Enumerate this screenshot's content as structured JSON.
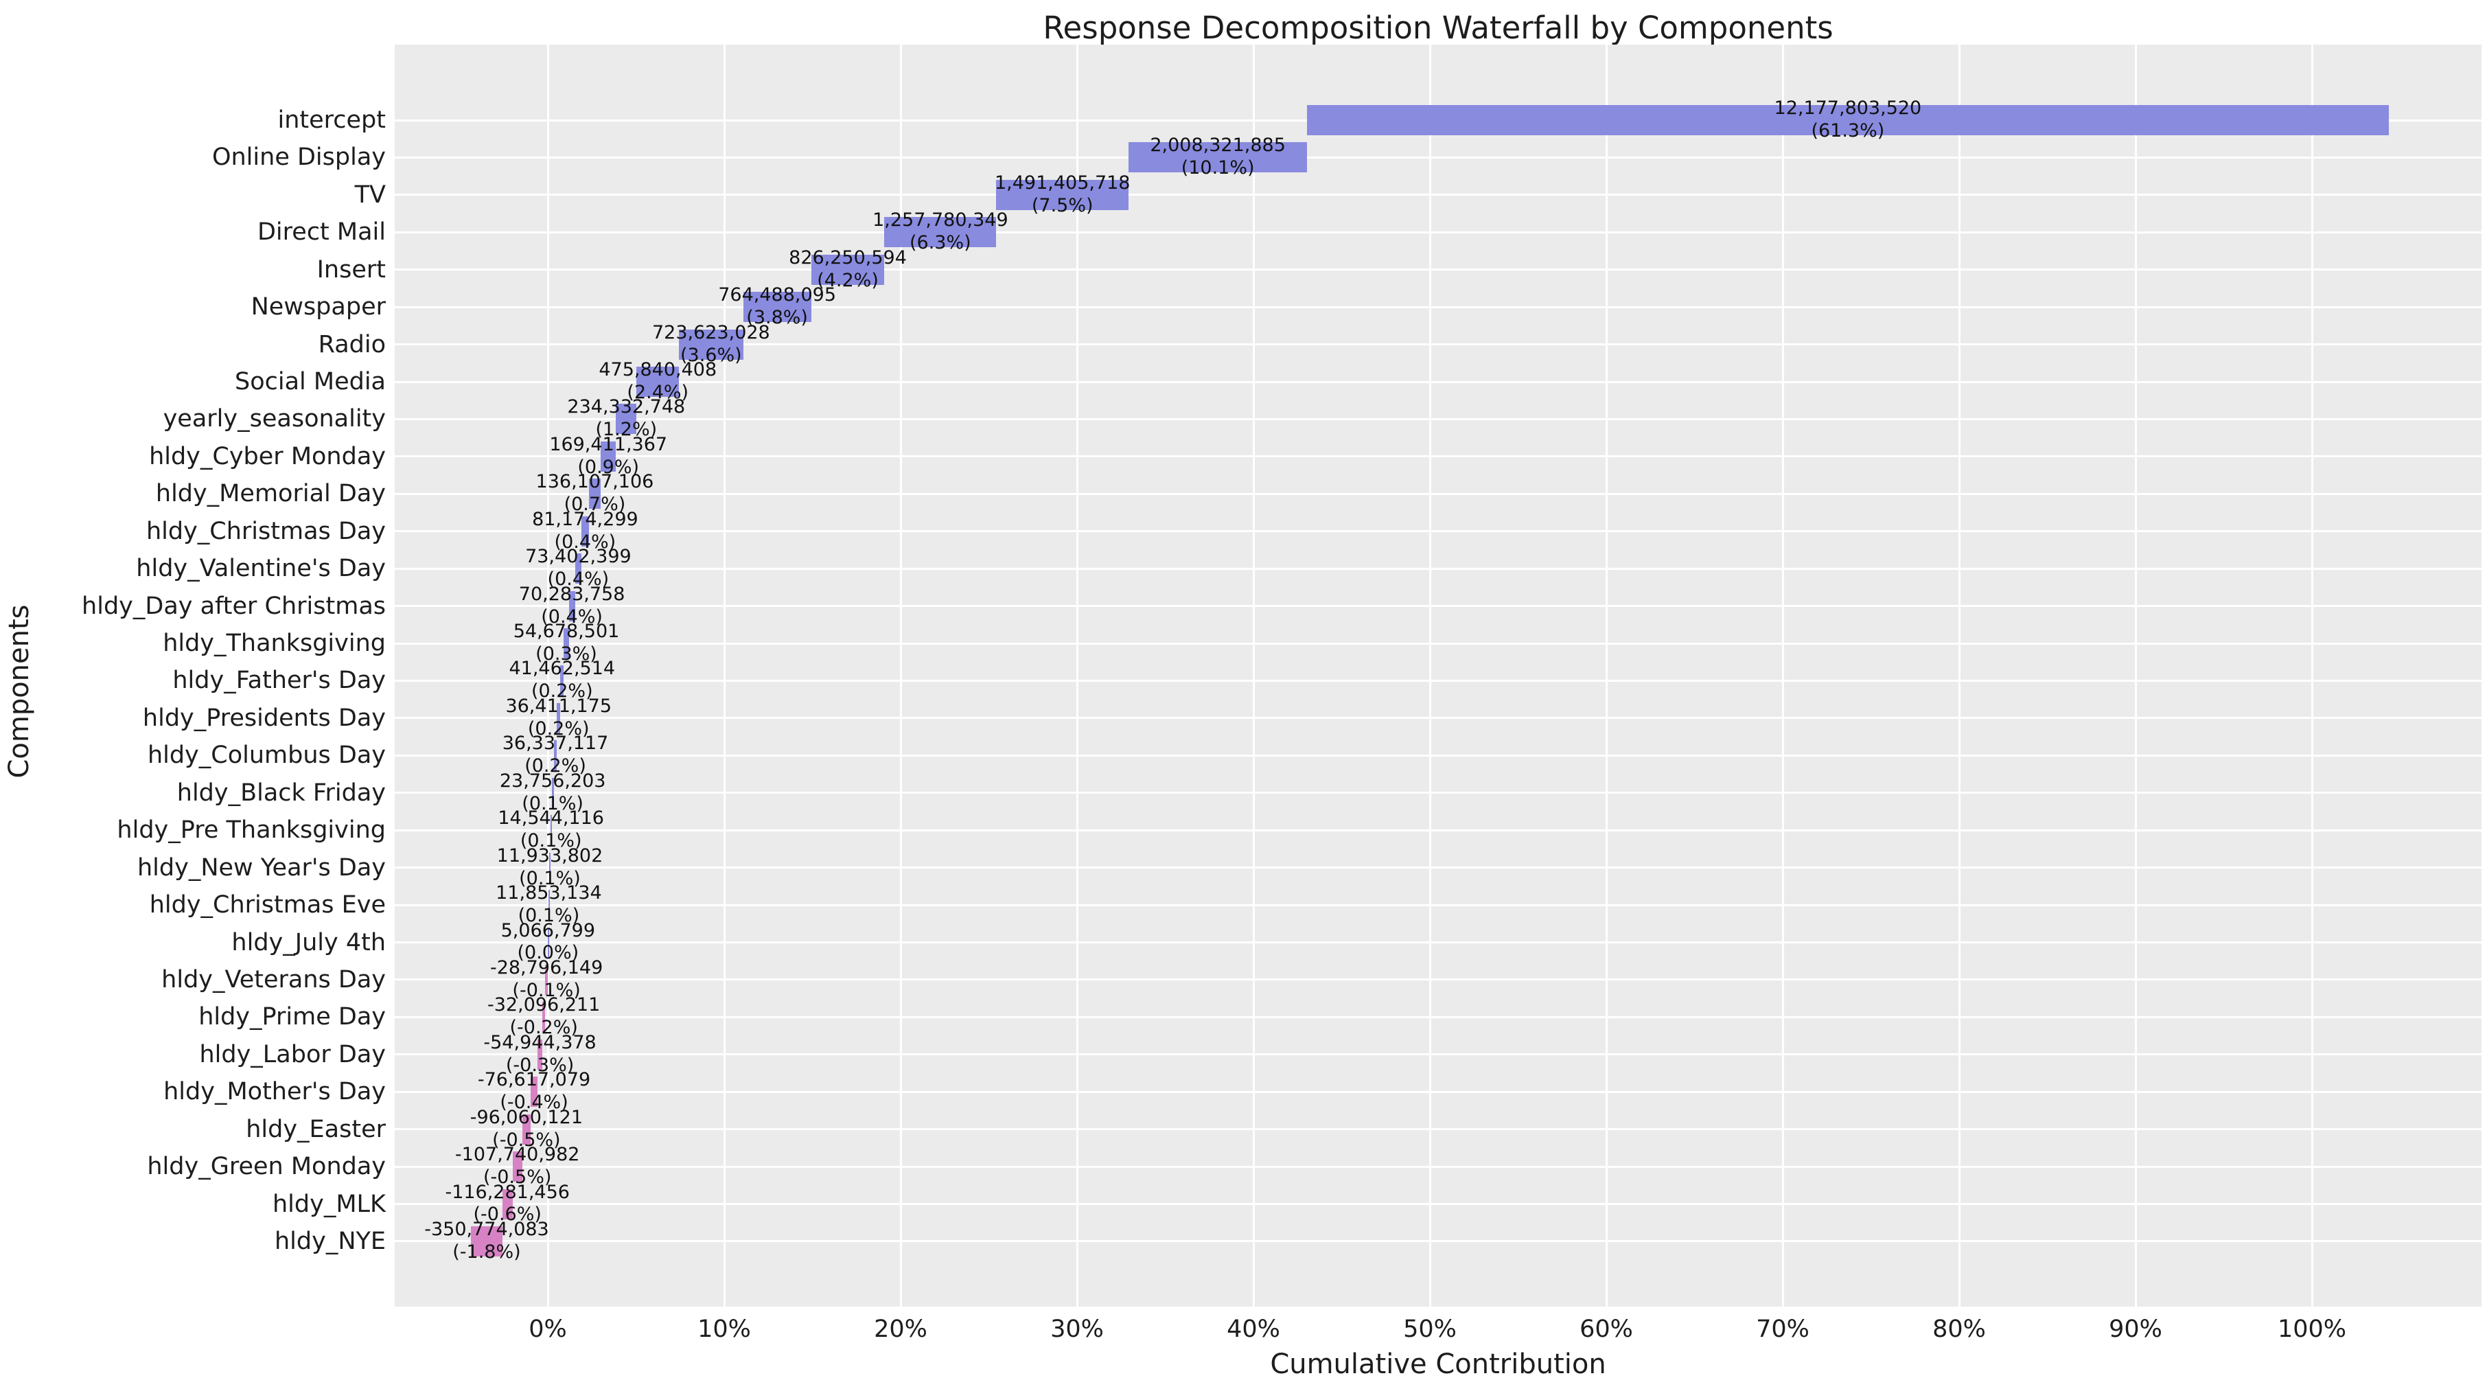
{
  "title": "Response Decomposition Waterfall by Components",
  "x_axis_label": "Cumulative Contribution",
  "y_axis_label": "Components",
  "colors": {
    "positive_bar": "#898bdf",
    "negative_bar": "#d782c4",
    "plot_background": "#ebebeb",
    "gridline": "#ffffff",
    "text": "#1d1d1d"
  },
  "chart_data": {
    "type": "bar",
    "subtype": "horizontal-waterfall",
    "title": "Response Decomposition Waterfall by Components",
    "xlabel": "Cumulative Contribution",
    "ylabel": "Components",
    "grid": true,
    "x_tick_labels": [
      "0%",
      "10%",
      "20%",
      "30%",
      "40%",
      "50%",
      "60%",
      "70%",
      "80%",
      "90%",
      "100%"
    ],
    "x_tick_values_pct": [
      0,
      10,
      20,
      30,
      40,
      50,
      60,
      70,
      80,
      90,
      100
    ],
    "x_range_pct": [
      -8.7,
      109.6
    ],
    "rows": [
      {
        "label": "intercept",
        "value": 12177803520,
        "value_label": "12,177,803,520",
        "pct_label": "(61.3%)"
      },
      {
        "label": "Online Display",
        "value": 2008321885,
        "value_label": "2,008,321,885",
        "pct_label": "(10.1%)"
      },
      {
        "label": "TV",
        "value": 1491405718,
        "value_label": "1,491,405,718",
        "pct_label": "(7.5%)"
      },
      {
        "label": "Direct Mail",
        "value": 1257780349,
        "value_label": "1,257,780,349",
        "pct_label": "(6.3%)"
      },
      {
        "label": "Insert",
        "value": 826250594,
        "value_label": "826,250,594",
        "pct_label": "(4.2%)"
      },
      {
        "label": "Newspaper",
        "value": 764488095,
        "value_label": "764,488,095",
        "pct_label": "(3.8%)"
      },
      {
        "label": "Radio",
        "value": 723623028,
        "value_label": "723,623,028",
        "pct_label": "(3.6%)"
      },
      {
        "label": "Social Media",
        "value": 475840408,
        "value_label": "475,840,408",
        "pct_label": "(2.4%)"
      },
      {
        "label": "yearly_seasonality",
        "value": 234332748,
        "value_label": "234,332,748",
        "pct_label": "(1.2%)"
      },
      {
        "label": "hldy_Cyber Monday",
        "value": 169411367,
        "value_label": "169,411,367",
        "pct_label": "(0.9%)"
      },
      {
        "label": "hldy_Memorial Day",
        "value": 136107106,
        "value_label": "136,107,106",
        "pct_label": "(0.7%)"
      },
      {
        "label": "hldy_Christmas Day",
        "value": 81174299,
        "value_label": "81,174,299",
        "pct_label": "(0.4%)"
      },
      {
        "label": "hldy_Valentine's Day",
        "value": 73402399,
        "value_label": "73,402,399",
        "pct_label": "(0.4%)"
      },
      {
        "label": "hldy_Day after Christmas",
        "value": 70283758,
        "value_label": "70,283,758",
        "pct_label": "(0.4%)"
      },
      {
        "label": "hldy_Thanksgiving",
        "value": 54678501,
        "value_label": "54,678,501",
        "pct_label": "(0.3%)"
      },
      {
        "label": "hldy_Father's Day",
        "value": 41462514,
        "value_label": "41,462,514",
        "pct_label": "(0.2%)"
      },
      {
        "label": "hldy_Presidents Day",
        "value": 36411175,
        "value_label": "36,411,175",
        "pct_label": "(0.2%)"
      },
      {
        "label": "hldy_Columbus Day",
        "value": 36337117,
        "value_label": "36,337,117",
        "pct_label": "(0.2%)"
      },
      {
        "label": "hldy_Black Friday",
        "value": 23756203,
        "value_label": "23,756,203",
        "pct_label": "(0.1%)"
      },
      {
        "label": "hldy_Pre Thanksgiving",
        "value": 14544116,
        "value_label": "14,544,116",
        "pct_label": "(0.1%)"
      },
      {
        "label": "hldy_New Year's Day",
        "value": 11933802,
        "value_label": "11,933,802",
        "pct_label": "(0.1%)"
      },
      {
        "label": "hldy_Christmas Eve",
        "value": 11853134,
        "value_label": "11,853,134",
        "pct_label": "(0.1%)"
      },
      {
        "label": "hldy_July 4th",
        "value": 5066799,
        "value_label": "5,066,799",
        "pct_label": "(0.0%)"
      },
      {
        "label": "hldy_Veterans Day",
        "value": -28796149,
        "value_label": "-28,796,149",
        "pct_label": "(-0.1%)"
      },
      {
        "label": "hldy_Prime Day",
        "value": -32096211,
        "value_label": "-32,096,211",
        "pct_label": "(-0.2%)"
      },
      {
        "label": "hldy_Labor Day",
        "value": -54944378,
        "value_label": "-54,944,378",
        "pct_label": "(-0.3%)"
      },
      {
        "label": "hldy_Mother's Day",
        "value": -76617079,
        "value_label": "-76,617,079",
        "pct_label": "(-0.4%)"
      },
      {
        "label": "hldy_Easter",
        "value": -96060121,
        "value_label": "-96,060,121",
        "pct_label": "(-0.5%)"
      },
      {
        "label": "hldy_Green Monday",
        "value": -107740982,
        "value_label": "-107,740,982",
        "pct_label": "(-0.5%)"
      },
      {
        "label": "hldy_MLK",
        "value": -116281456,
        "value_label": "-116,281,456",
        "pct_label": "(-0.6%)"
      },
      {
        "label": "hldy_NYE",
        "value": -350774083,
        "value_label": "-350,774,083",
        "pct_label": "(-1.8%)"
      }
    ]
  }
}
